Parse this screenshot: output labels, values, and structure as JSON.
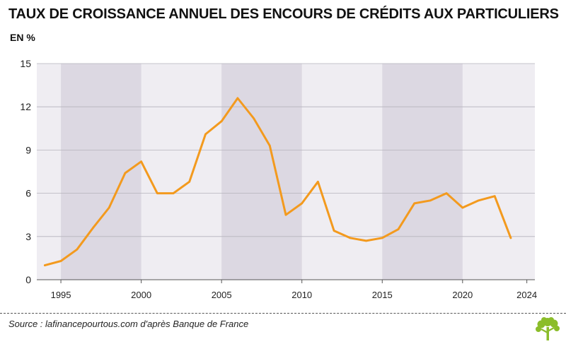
{
  "title": "TAUX DE CROISSANCE ANNUEL DES ENCOURS DE CRÉDITS AUX PARTICULIERS",
  "unit": "EN %",
  "source": "Source : lafinancepourtous.com d'après Banque de France",
  "colors": {
    "line": "#f39a1e",
    "band_dark": "#dcd8e2",
    "band_light": "#efedf2",
    "grid": "#b5b3bb",
    "logo": "#8bbd2a"
  },
  "chart_data": {
    "type": "line",
    "title": "TAUX DE CROISSANCE ANNUEL DES ENCOURS DE CRÉDITS AUX PARTICULIERS",
    "ylabel": "EN %",
    "xlabel": "",
    "ylim": [
      0,
      15
    ],
    "xlim": [
      1993.5,
      2024.5
    ],
    "y_ticks": [
      0,
      3,
      6,
      9,
      12,
      15
    ],
    "x_ticks": [
      1995,
      2000,
      2005,
      2010,
      2015,
      2020,
      2024
    ],
    "shaded_periods": [
      [
        1995,
        2000
      ],
      [
        2005,
        2010
      ],
      [
        2015,
        2020
      ]
    ],
    "grid": "horizontal",
    "series": [
      {
        "x": [
          1994,
          1995,
          1996,
          1997,
          1998,
          1999,
          2000,
          2001,
          2002,
          2003,
          2004,
          2005,
          2006,
          2007,
          2008,
          2009,
          2010,
          2011,
          2012,
          2013,
          2014,
          2015,
          2016,
          2017,
          2018,
          2019,
          2020,
          2021,
          2022,
          2023
        ],
        "values": [
          1.0,
          1.3,
          2.1,
          3.6,
          5.0,
          7.4,
          8.2,
          6.0,
          6.0,
          6.8,
          10.1,
          11.0,
          12.6,
          11.2,
          9.3,
          4.5,
          5.3,
          6.8,
          3.4,
          2.9,
          2.7,
          2.9,
          3.5,
          5.3,
          5.5,
          6.0,
          5.0,
          5.5,
          5.8,
          2.9
        ]
      }
    ]
  }
}
